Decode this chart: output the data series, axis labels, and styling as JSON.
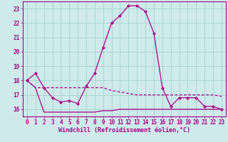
{
  "xlabel": "Windchill (Refroidissement éolien,°C)",
  "background_color": "#ceeaea",
  "grid_color": "#aed4d4",
  "line_color": "#aa0088",
  "x_hours": [
    0,
    1,
    2,
    3,
    4,
    5,
    6,
    7,
    8,
    9,
    10,
    11,
    12,
    13,
    14,
    15,
    16,
    17,
    18,
    19,
    20,
    21,
    22,
    23
  ],
  "windchill_values": [
    18.0,
    18.5,
    17.5,
    16.8,
    16.5,
    16.6,
    16.4,
    17.6,
    18.5,
    20.3,
    22.0,
    22.5,
    23.2,
    23.2,
    22.8,
    21.3,
    17.5,
    16.2,
    16.8,
    16.8,
    16.8,
    16.2,
    16.2,
    16.0
  ],
  "temp_values": [
    18.0,
    17.5,
    17.5,
    17.5,
    17.5,
    17.5,
    17.5,
    17.5,
    17.5,
    17.5,
    17.3,
    17.2,
    17.1,
    17.0,
    17.0,
    17.0,
    17.0,
    17.0,
    17.0,
    17.0,
    17.0,
    17.0,
    17.0,
    16.9
  ],
  "min_values": [
    18.0,
    17.5,
    15.8,
    15.8,
    15.8,
    15.8,
    15.8,
    15.8,
    15.8,
    15.9,
    15.9,
    16.0,
    16.0,
    16.0,
    16.0,
    16.0,
    16.0,
    16.0,
    16.0,
    16.0,
    16.0,
    16.0,
    16.0,
    16.0
  ],
  "ylim": [
    15.5,
    23.5
  ],
  "yticks": [
    16,
    17,
    18,
    19,
    20,
    21,
    22,
    23
  ],
  "xlim": [
    -0.5,
    23.5
  ],
  "xticks": [
    0,
    1,
    2,
    3,
    4,
    5,
    6,
    7,
    8,
    9,
    10,
    11,
    12,
    13,
    14,
    15,
    16,
    17,
    18,
    19,
    20,
    21,
    22,
    23
  ]
}
